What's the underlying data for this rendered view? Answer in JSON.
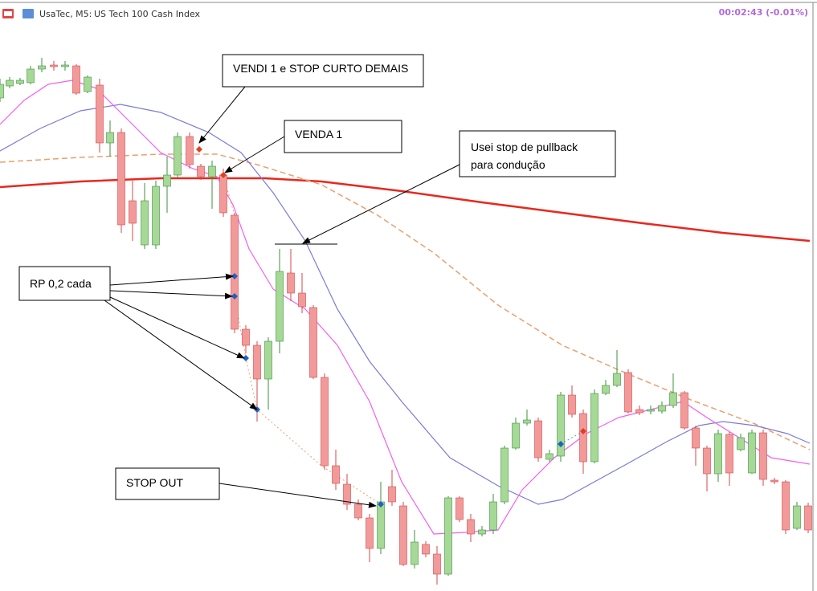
{
  "header": {
    "symbol": "UsaTec, M5:",
    "name": "US Tech 100 Cash Index",
    "timer": "00:02:43 (-0.01%)"
  },
  "annotations": [
    {
      "lines": [
        "VENDI 1 e STOP CURTO DEMAIS"
      ]
    },
    {
      "lines": [
        "VENDA 1"
      ]
    },
    {
      "lines": [
        "Usei stop de pullback",
        "para condução"
      ]
    },
    {
      "lines": [
        "RP 0,2 cada"
      ]
    },
    {
      "lines": [
        "STOP OUT"
      ]
    }
  ]
}
